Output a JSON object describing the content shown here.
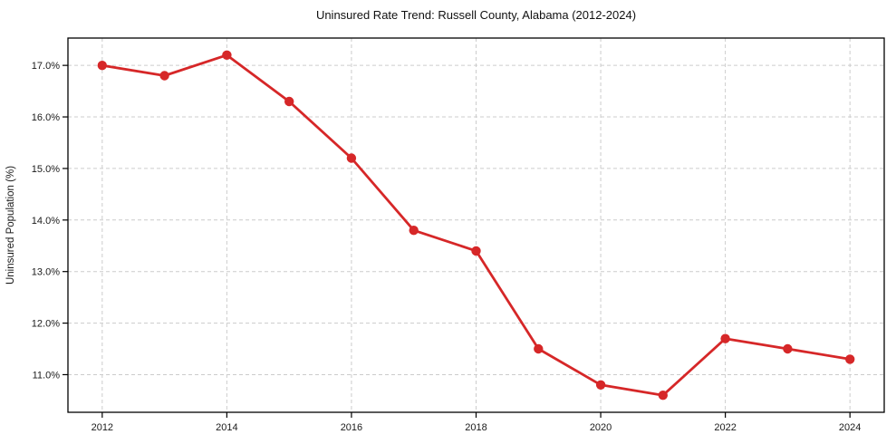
{
  "chart_data": {
    "type": "line",
    "title": "Uninsured Rate Trend: Russell County, Alabama (2012-2024)",
    "xlabel": "",
    "ylabel": "Uninsured Population (%)",
    "x": [
      2012,
      2013,
      2014,
      2015,
      2016,
      2017,
      2018,
      2019,
      2020,
      2021,
      2022,
      2023,
      2024
    ],
    "series": [
      {
        "name": "Uninsured rate",
        "color": "#d62728",
        "values": [
          17.0,
          16.8,
          17.2,
          16.3,
          15.2,
          13.8,
          13.4,
          11.5,
          10.8,
          10.6,
          11.7,
          11.5,
          11.3
        ]
      }
    ],
    "xlim": [
      2011.45,
      2024.55
    ],
    "ylim": [
      10.27,
      17.53
    ],
    "xticks": [
      2012,
      2014,
      2016,
      2018,
      2020,
      2022,
      2024
    ],
    "yticks": [
      11.0,
      12.0,
      13.0,
      14.0,
      15.0,
      16.0,
      17.0
    ],
    "ytick_suffix": "%",
    "grid": true,
    "grid_color": "#cccccc",
    "grid_style": "dashed",
    "axis_color": "#000000",
    "marker": "circle",
    "legend": null
  }
}
